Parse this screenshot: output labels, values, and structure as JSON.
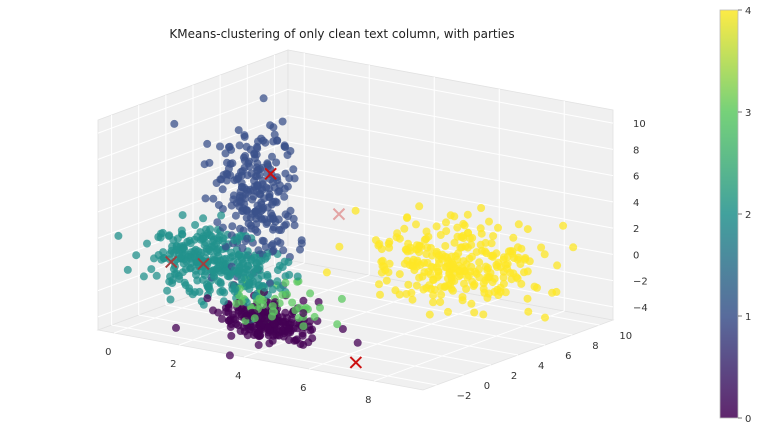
{
  "chart_data": {
    "type": "scatter",
    "projection": "3d",
    "title": "KMeans-clustering of only clean text column, with parties",
    "x_ticks": [
      "0",
      "2",
      "4",
      "6",
      "8"
    ],
    "y_ticks": [
      "−2",
      "0",
      "2",
      "4",
      "6",
      "8",
      "10"
    ],
    "z_ticks": [
      "−4",
      "−2",
      "0",
      "2",
      "4",
      "6",
      "8",
      "10"
    ],
    "xlim": [
      -0.5,
      9.5
    ],
    "ylim": [
      -3,
      11
    ],
    "zlim": [
      -5,
      11
    ],
    "grid": true,
    "colormap": "viridis",
    "colorbar": {
      "ticks": [
        "0",
        "1",
        "2",
        "3",
        "4"
      ],
      "range": [
        0,
        4
      ]
    },
    "cluster_colors": [
      "#440154",
      "#3b528b",
      "#21918c",
      "#5ec962",
      "#fde725"
    ],
    "clusters": [
      {
        "label": 0,
        "center": [
          3,
          1,
          -4.2
        ],
        "spread": [
          0.7,
          0.6,
          0.7
        ],
        "n": 220
      },
      {
        "label": 1,
        "center": [
          2.5,
          1.5,
          5
        ],
        "spread": [
          0.6,
          0.7,
          2.8
        ],
        "n": 240
      },
      {
        "label": 2,
        "center": [
          1.5,
          0.8,
          -0.5
        ],
        "spread": [
          0.9,
          0.7,
          1.2
        ],
        "n": 320
      },
      {
        "label": 3,
        "center": [
          3.3,
          0.8,
          -2.5
        ],
        "spread": [
          0.7,
          0.6,
          0.8
        ],
        "n": 50
      },
      {
        "label": 4,
        "center": [
          7.5,
          4.5,
          1
        ],
        "spread": [
          1.1,
          1.5,
          1.6
        ],
        "n": 280
      }
    ],
    "centroids": [
      {
        "label": 0,
        "xyz": [
          0.5,
          0,
          -0.5
        ],
        "color": "#a04040"
      },
      {
        "label": 1,
        "xyz": [
          1.2,
          0.7,
          -0.6
        ],
        "color": "#a04040"
      },
      {
        "label": 2,
        "xyz": [
          7.1,
          -2.2,
          -4.3
        ],
        "color": "#cc1111"
      },
      {
        "label": 3,
        "xyz": [
          4.2,
          3.5,
          3.5
        ],
        "color": "#e3a4a4"
      },
      {
        "label": 4,
        "xyz": [
          2.6,
          2.3,
          6.3
        ],
        "color": "#cc1111"
      }
    ]
  }
}
